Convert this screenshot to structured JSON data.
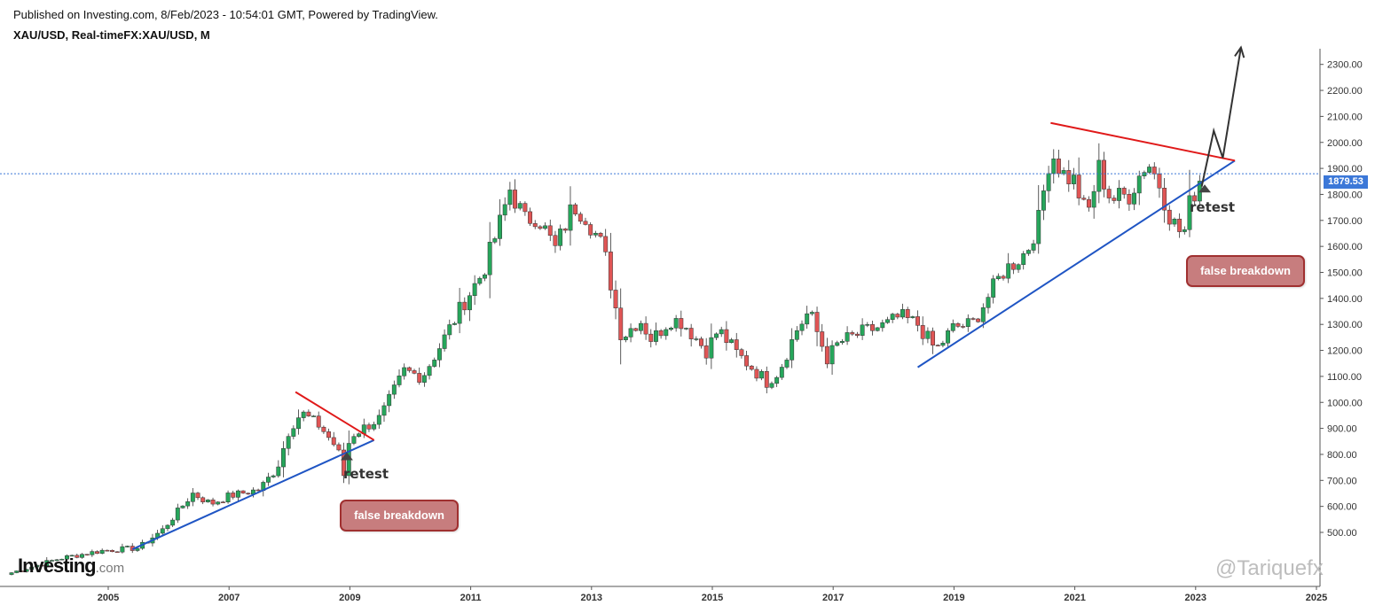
{
  "header": {
    "publisher": "Published on Investing.com, 8/Feb/2023 - 10:54:01 GMT, Powered by TradingView.",
    "symbol": "XAU/USD, Real-timeFX:XAU/USD, M"
  },
  "watermark": {
    "logo": "Investing",
    "logo_suffix": ".com",
    "user": "@Tariquefx"
  },
  "colors": {
    "up": "#26a65b",
    "down": "#e05555",
    "trend_support": "#1f55c4",
    "trend_resistance": "#e01919",
    "price_line": "#3c78d8",
    "projection": "#333333"
  },
  "annotations": {
    "retest_1": "retest",
    "retest_2": "retest",
    "false_breakdown_1": "false breakdown",
    "false_breakdown_2": "false breakdown"
  },
  "last_price": {
    "label": "1879.53",
    "value": 1879.53
  },
  "chart_data": {
    "type": "candlestick",
    "interval": "monthly",
    "ylim": [
      300,
      2380
    ],
    "xlim": [
      2003.3,
      2025.2
    ],
    "y_ticks": [
      "500.00",
      "600.00",
      "700.00",
      "800.00",
      "900.00",
      "1000.00",
      "1100.00",
      "1200.00",
      "1300.00",
      "1400.00",
      "1500.00",
      "1600.00",
      "1700.00",
      "1800.00",
      "1900.00",
      "2000.00",
      "2100.00",
      "2200.00",
      "2300.00"
    ],
    "x_ticks": [
      "2005",
      "2007",
      "2009",
      "2011",
      "2013",
      "2015",
      "2017",
      "2019",
      "2021",
      "2023",
      "2025"
    ],
    "anchors": [
      [
        2003.4,
        345
      ],
      [
        2004.2,
        400
      ],
      [
        2004.9,
        430
      ],
      [
        2005.5,
        440
      ],
      [
        2005.9,
        510
      ],
      [
        2006.4,
        650
      ],
      [
        2006.7,
        610
      ],
      [
        2007.0,
        640
      ],
      [
        2007.5,
        665
      ],
      [
        2007.8,
        750
      ],
      [
        2008.0,
        900
      ],
      [
        2008.2,
        960
      ],
      [
        2008.5,
        910
      ],
      [
        2008.8,
        820
      ],
      [
        2008.9,
        720
      ],
      [
        2009.0,
        870
      ],
      [
        2009.5,
        940
      ],
      [
        2009.9,
        1120
      ],
      [
        2010.2,
        1100
      ],
      [
        2010.5,
        1220
      ],
      [
        2010.9,
        1390
      ],
      [
        2011.2,
        1500
      ],
      [
        2011.5,
        1700
      ],
      [
        2011.65,
        1820
      ],
      [
        2011.9,
        1700
      ],
      [
        2012.1,
        1720
      ],
      [
        2012.4,
        1590
      ],
      [
        2012.7,
        1760
      ],
      [
        2012.9,
        1720
      ],
      [
        2013.2,
        1590
      ],
      [
        2013.5,
        1250
      ],
      [
        2013.8,
        1320
      ],
      [
        2014.0,
        1240
      ],
      [
        2014.3,
        1320
      ],
      [
        2014.5,
        1310
      ],
      [
        2014.9,
        1200
      ],
      [
        2015.1,
        1280
      ],
      [
        2015.4,
        1190
      ],
      [
        2015.9,
        1080
      ],
      [
        2016.1,
        1120
      ],
      [
        2016.4,
        1280
      ],
      [
        2016.6,
        1350
      ],
      [
        2016.9,
        1170
      ],
      [
        2017.1,
        1230
      ],
      [
        2017.5,
        1270
      ],
      [
        2017.9,
        1300
      ],
      [
        2018.1,
        1330
      ],
      [
        2018.4,
        1300
      ],
      [
        2018.7,
        1200
      ],
      [
        2019.0,
        1290
      ],
      [
        2019.3,
        1300
      ],
      [
        2019.6,
        1420
      ],
      [
        2019.8,
        1500
      ],
      [
        2020.2,
        1580
      ],
      [
        2020.4,
        1700
      ],
      [
        2020.6,
        1970
      ],
      [
        2020.8,
        1880
      ],
      [
        2021.0,
        1850
      ],
      [
        2021.2,
        1710
      ],
      [
        2021.4,
        1900
      ],
      [
        2021.6,
        1780
      ],
      [
        2021.9,
        1800
      ],
      [
        2022.2,
        1930
      ],
      [
        2022.4,
        1840
      ],
      [
        2022.6,
        1700
      ],
      [
        2022.8,
        1640
      ],
      [
        2022.9,
        1760
      ],
      [
        2023.0,
        1820
      ],
      [
        2023.1,
        1880
      ]
    ],
    "trendlines": [
      {
        "name": "support-2005",
        "from": [
          2005.4,
          435
        ],
        "to": [
          2009.4,
          855
        ]
      },
      {
        "name": "resistance-2008",
        "from": [
          2008.1,
          1040
        ],
        "to": [
          2009.4,
          855
        ]
      },
      {
        "name": "support-2018",
        "from": [
          2018.4,
          1135
        ],
        "to": [
          2023.65,
          1930
        ]
      },
      {
        "name": "resistance-2020",
        "from": [
          2020.6,
          2075
        ],
        "to": [
          2023.65,
          1930
        ]
      }
    ],
    "projection": [
      [
        2023.1,
        1830
      ],
      [
        2023.3,
        2045
      ],
      [
        2023.45,
        1940
      ],
      [
        2023.75,
        2365
      ]
    ],
    "retest_markers": [
      [
        2008.95,
        815
      ],
      [
        2023.15,
        1845
      ]
    ]
  }
}
